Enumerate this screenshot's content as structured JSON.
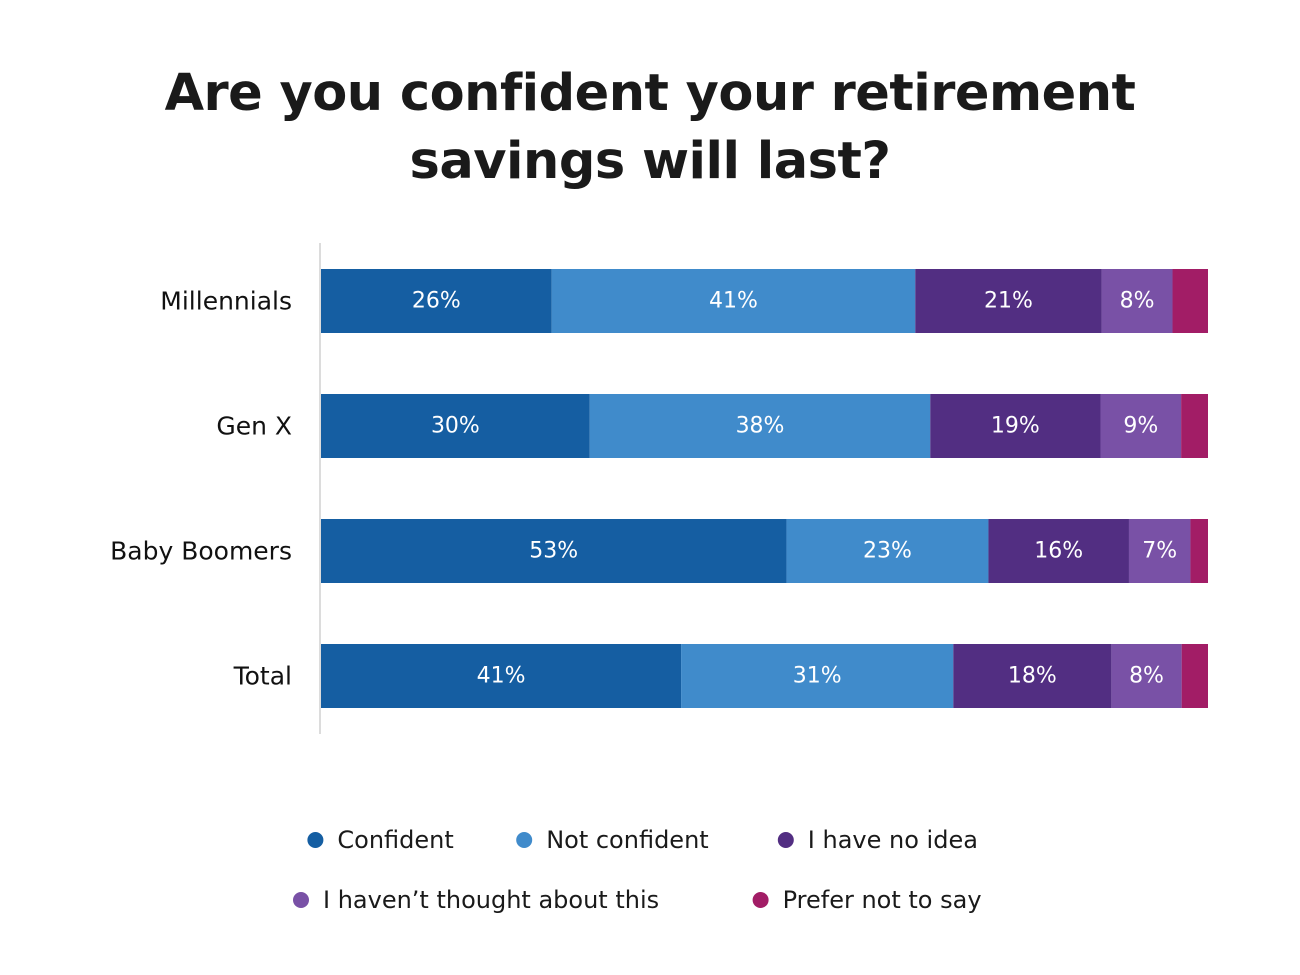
{
  "chart_data": {
    "type": "bar",
    "orientation": "horizontal",
    "stacked": true,
    "title": "Are you confident your retirement savings will last?",
    "title_lines": [
      "Are you confident your retirement",
      "savings will last?"
    ],
    "xlabel": "",
    "ylabel": "",
    "xlim": [
      0,
      100
    ],
    "grid": false,
    "legend_position": "bottom",
    "categories": [
      "Millennials",
      "Gen X",
      "Baby Boomers",
      "Total"
    ],
    "series": [
      {
        "name": "Confident",
        "color": "#155ea2",
        "values": [
          26,
          30,
          53,
          41
        ],
        "labels": [
          "26%",
          "30%",
          "53%",
          "41%"
        ]
      },
      {
        "name": "Not confident",
        "color": "#408bcb",
        "values": [
          41,
          38,
          23,
          31
        ],
        "labels": [
          "41%",
          "38%",
          "23%",
          "31%"
        ]
      },
      {
        "name": "I have no idea",
        "color": "#522e82",
        "values": [
          21,
          19,
          16,
          18
        ],
        "labels": [
          "21%",
          "19%",
          "16%",
          "18%"
        ]
      },
      {
        "name": "I haven’t thought about this",
        "color": "#7951a6",
        "values": [
          8,
          9,
          7,
          8
        ],
        "labels": [
          "8%",
          "9%",
          "7%",
          "8%"
        ]
      },
      {
        "name": "Prefer not to say",
        "color": "#a21d66",
        "values": [
          4,
          3,
          2,
          3
        ],
        "labels": [
          "",
          "",
          "",
          ""
        ]
      }
    ]
  }
}
